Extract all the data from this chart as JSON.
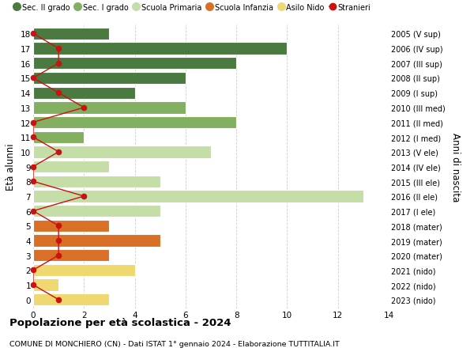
{
  "ages": [
    18,
    17,
    16,
    15,
    14,
    13,
    12,
    11,
    10,
    9,
    8,
    7,
    6,
    5,
    4,
    3,
    2,
    1,
    0
  ],
  "years": [
    "2005 (V sup)",
    "2006 (IV sup)",
    "2007 (III sup)",
    "2008 (II sup)",
    "2009 (I sup)",
    "2010 (III med)",
    "2011 (II med)",
    "2012 (I med)",
    "2013 (V ele)",
    "2014 (IV ele)",
    "2015 (III ele)",
    "2016 (II ele)",
    "2017 (I ele)",
    "2018 (mater)",
    "2019 (mater)",
    "2020 (mater)",
    "2021 (nido)",
    "2022 (nido)",
    "2023 (nido)"
  ],
  "values": [
    3,
    10,
    8,
    6,
    4,
    6,
    8,
    2,
    7,
    3,
    5,
    13,
    5,
    3,
    5,
    3,
    4,
    1,
    3
  ],
  "stranieri": [
    0,
    1,
    1,
    0,
    1,
    2,
    0,
    0,
    1,
    0,
    0,
    2,
    0,
    1,
    1,
    1,
    0,
    0,
    1
  ],
  "colors": {
    "sec2": "#4a7a40",
    "sec1": "#82b060",
    "primaria": "#c5dea8",
    "infanzia": "#d97028",
    "nido": "#f0d870",
    "stranieri": "#cc1111"
  },
  "bar_colors": [
    "sec2",
    "sec2",
    "sec2",
    "sec2",
    "sec2",
    "sec1",
    "sec1",
    "sec1",
    "primaria",
    "primaria",
    "primaria",
    "primaria",
    "primaria",
    "infanzia",
    "infanzia",
    "infanzia",
    "nido",
    "nido",
    "nido"
  ],
  "xlim": [
    0,
    14
  ],
  "xticks": [
    0,
    2,
    4,
    6,
    8,
    10,
    12,
    14
  ],
  "ylabel": "Età alunni",
  "ylabel2": "Anni di nascita",
  "title": "Popolazione per età scolastica - 2024",
  "subtitle": "COMUNE DI MONCHIERO (CN) - Dati ISTAT 1° gennaio 2024 - Elaborazione TUTTITALIA.IT",
  "legend_labels": [
    "Sec. II grado",
    "Sec. I grado",
    "Scuola Primaria",
    "Scuola Infanzia",
    "Asilo Nido",
    "Stranieri"
  ],
  "legend_colors": [
    "#4a7a40",
    "#82b060",
    "#c5dea8",
    "#d97028",
    "#f0d870",
    "#cc1111"
  ],
  "bg_color": "#ffffff",
  "grid_color": "#cccccc"
}
